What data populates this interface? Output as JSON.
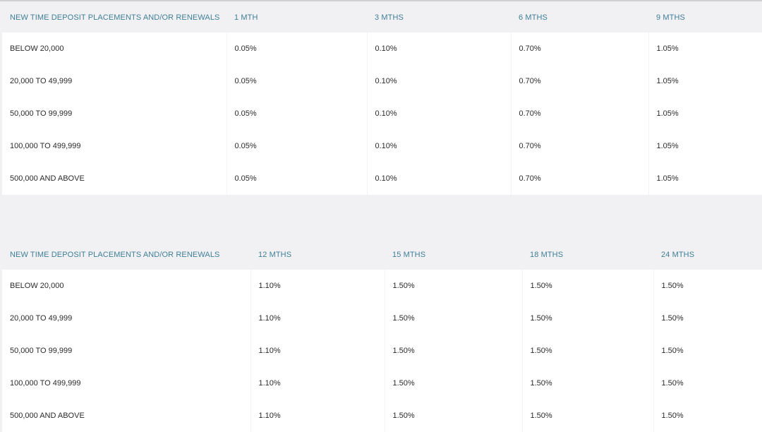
{
  "table_1": {
    "headers": [
      "NEW TIME DEPOSIT PLACEMENTS AND/OR RENEWALS",
      "1 MTH",
      "3 MTHS",
      "6 MTHS",
      "9 MTHS"
    ],
    "rows": [
      [
        "BELOW 20,000",
        "0.05%",
        "0.10%",
        "0.70%",
        "1.05%"
      ],
      [
        "20,000 TO 49,999",
        "0.05%",
        "0.10%",
        "0.70%",
        "1.05%"
      ],
      [
        "50,000 TO 99,999",
        "0.05%",
        "0.10%",
        "0.70%",
        "1.05%"
      ],
      [
        "100,000 TO 499,999",
        "0.05%",
        "0.10%",
        "0.70%",
        "1.05%"
      ],
      [
        "500,000 AND ABOVE",
        "0.05%",
        "0.10%",
        "0.70%",
        "1.05%"
      ]
    ]
  },
  "table_2": {
    "headers": [
      "NEW TIME DEPOSIT PLACEMENTS AND/OR RENEWALS",
      "12 MTHS",
      "15 MTHS",
      "18 MTHS",
      "24 MTHS"
    ],
    "rows": [
      [
        "BELOW 20,000",
        "1.10%",
        "1.50%",
        "1.50%",
        "1.50%"
      ],
      [
        "20,000 TO 49,999",
        "1.10%",
        "1.50%",
        "1.50%",
        "1.50%"
      ],
      [
        "50,000 TO 99,999",
        "1.10%",
        "1.50%",
        "1.50%",
        "1.50%"
      ],
      [
        "100,000 TO 499,999",
        "1.10%",
        "1.50%",
        "1.50%",
        "1.50%"
      ],
      [
        "500,000 AND ABOVE",
        "1.10%",
        "1.50%",
        "1.50%",
        "1.50%"
      ]
    ]
  },
  "colors": {
    "header_text": "#3f7f98",
    "body_text": "#2b2b2b",
    "page_background": "#f1f1f3",
    "row_background": "#ffffff"
  }
}
